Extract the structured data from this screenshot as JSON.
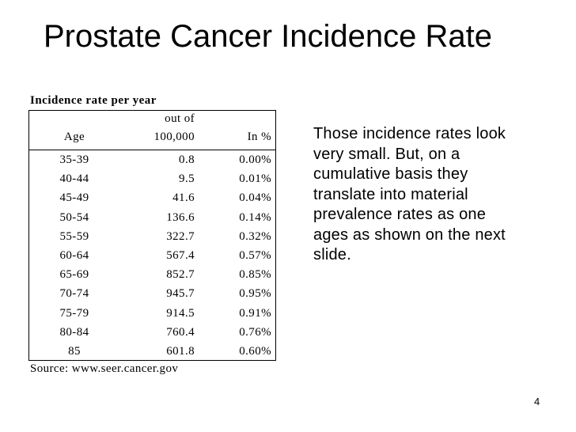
{
  "slide": {
    "title": "Prostate Cancer Incidence Rate",
    "page_number": "4"
  },
  "table": {
    "caption": "Incidence rate per year",
    "headers": {
      "age": "Age",
      "rate_line1": "out of",
      "rate_line2": "100,000",
      "pct": "In %"
    },
    "rows": [
      {
        "age": "35-39",
        "rate": "0.8",
        "pct": "0.00%"
      },
      {
        "age": "40-44",
        "rate": "9.5",
        "pct": "0.01%"
      },
      {
        "age": "45-49",
        "rate": "41.6",
        "pct": "0.04%"
      },
      {
        "age": "50-54",
        "rate": "136.6",
        "pct": "0.14%"
      },
      {
        "age": "55-59",
        "rate": "322.7",
        "pct": "0.32%"
      },
      {
        "age": "60-64",
        "rate": "567.4",
        "pct": "0.57%"
      },
      {
        "age": "65-69",
        "rate": "852.7",
        "pct": "0.85%"
      },
      {
        "age": "70-74",
        "rate": "945.7",
        "pct": "0.95%"
      },
      {
        "age": "75-79",
        "rate": "914.5",
        "pct": "0.91%"
      },
      {
        "age": "80-84",
        "rate": "760.4",
        "pct": "0.76%"
      },
      {
        "age": "85",
        "rate": "601.8",
        "pct": "0.60%"
      }
    ],
    "source": "Source: www.seer.cancer.gov"
  },
  "note": {
    "lines": [
      "Those incidence rates look",
      "very small.  But, on a",
      "cumulative basis they",
      "translate into material",
      "prevalence rates as one",
      "ages as shown on the next",
      "slide."
    ]
  }
}
